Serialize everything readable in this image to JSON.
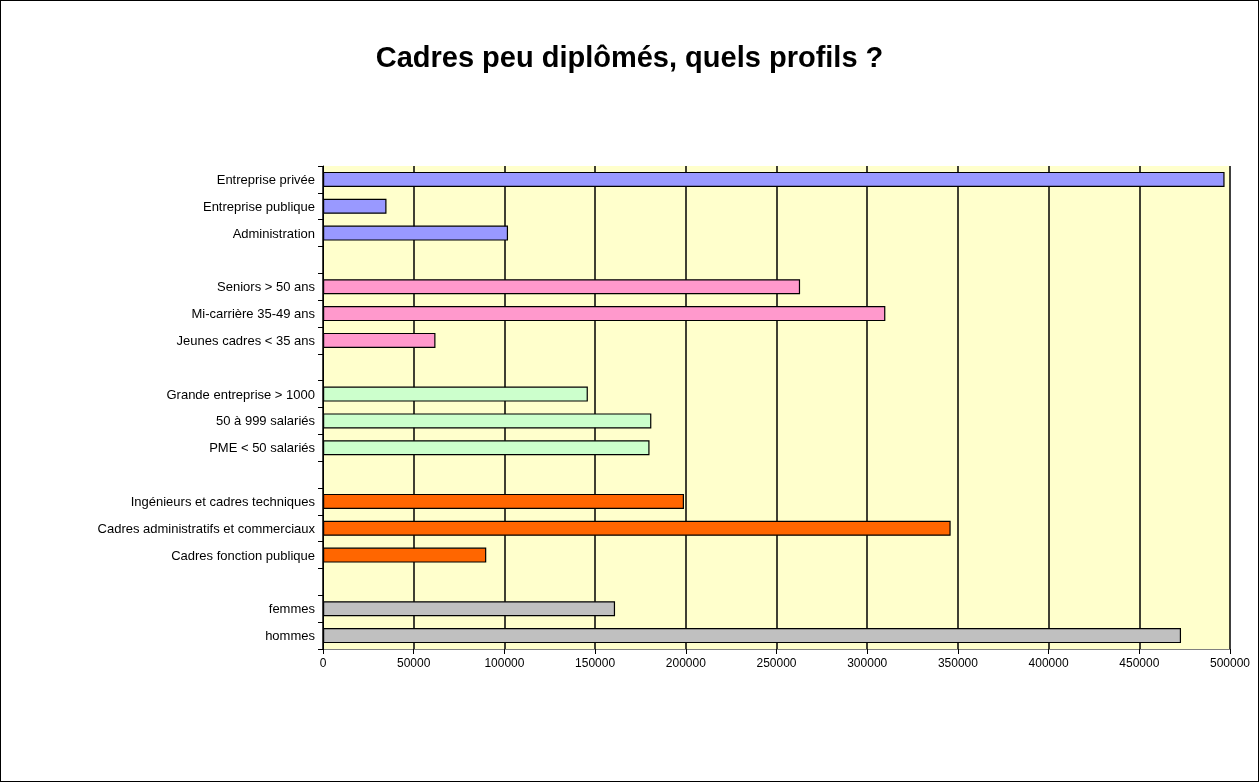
{
  "chart_data": {
    "type": "bar",
    "orientation": "horizontal",
    "title": "Cadres peu diplômés, quels profils ?",
    "categories": [
      "Entreprise privée",
      "Entreprise publique",
      "Administration",
      null,
      "Seniors > 50 ans",
      "Mi-carrière 35-49 ans",
      "Jeunes cadres < 35 ans",
      null,
      "Grande entreprise > 1000",
      "50 à 999 salariés",
      "PME < 50 salariés",
      null,
      "Ingénieurs et cadres techniques",
      "Cadres administratifs et commerciaux",
      "Cadres fonction publique",
      null,
      "femmes",
      "hommes"
    ],
    "values": [
      497000,
      35000,
      102000,
      null,
      263000,
      310000,
      62000,
      null,
      146000,
      181000,
      180000,
      null,
      199000,
      346000,
      90000,
      null,
      161000,
      473000
    ],
    "colors": [
      "#9999ff",
      "#9999ff",
      "#9999ff",
      null,
      "#ff99cc",
      "#ff99cc",
      "#ff99cc",
      null,
      "#ccffcc",
      "#ccffcc",
      "#ccffcc",
      null,
      "#ff6600",
      "#ff6600",
      "#ff6600",
      null,
      "#c0c0c0",
      "#c0c0c0"
    ],
    "xlim": [
      0,
      500000
    ],
    "xticks": [
      0,
      50000,
      100000,
      150000,
      200000,
      250000,
      300000,
      350000,
      400000,
      450000,
      500000
    ],
    "grid": "x"
  }
}
